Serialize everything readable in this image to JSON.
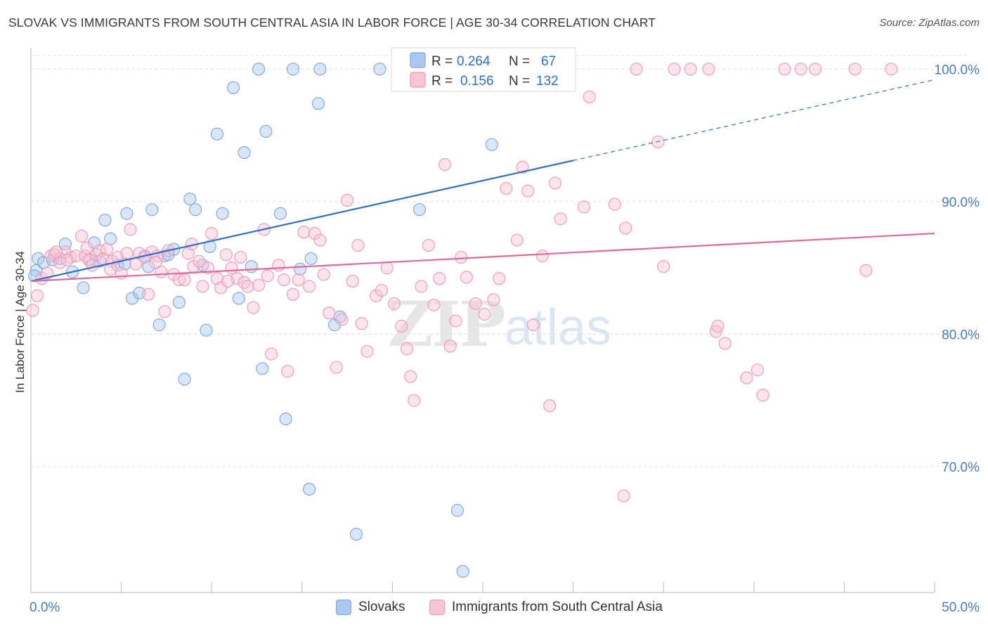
{
  "header": {
    "title": "SLOVAK VS IMMIGRANTS FROM SOUTH CENTRAL ASIA IN LABOR FORCE | AGE 30-34 CORRELATION CHART",
    "source": "Source: ZipAtlas.com"
  },
  "colors": {
    "slovaks": "#7aa6e0",
    "slovaks_fill": "#aac8f0",
    "slovaks_line": "#2f6fcf",
    "immigrants": "#ee99b5",
    "immigrants_fill": "#f7c4d5",
    "immigrants_line": "#e2699a",
    "axis_label": "#4a7cc0",
    "grid": "#e0e0e0"
  },
  "legend": {
    "r_label": "R =",
    "n_label": "N =",
    "slovaks": {
      "r": "0.264",
      "n": "67"
    },
    "immigrants": {
      "r": "0.156",
      "n": "132"
    }
  },
  "watermark": {
    "zip": "ZIP",
    "atlas": "atlas"
  },
  "bottom_legend": {
    "slovaks": "Slovaks",
    "immigrants": "Immigrants from South Central Asia"
  },
  "chart_data": {
    "type": "scatter",
    "title": "SLOVAK VS IMMIGRANTS FROM SOUTH CENTRAL ASIA IN LABOR FORCE | AGE 30-34 CORRELATION CHART",
    "xlabel": "",
    "ylabel": "In Labor Force | Age 30-34",
    "xlim": [
      0,
      50
    ],
    "ylim": [
      60.5,
      101.5
    ],
    "x_tick_labels": [
      "0.0%",
      "50.0%"
    ],
    "y_ticks": [
      70,
      80,
      90,
      100
    ],
    "y_tick_labels": [
      "70.0%",
      "80.0%",
      "90.0%",
      "100.0%"
    ],
    "grid": true,
    "legend_position": "top-center",
    "series": [
      {
        "name": "Slovaks",
        "r": 0.264,
        "n": 67,
        "trend": {
          "x": [
            0,
            30
          ],
          "y": [
            84.0,
            93.1
          ],
          "dashed_extension": {
            "x": [
              30,
              50
            ],
            "y": [
              93.1,
              99.2
            ]
          }
        },
        "points": [
          [
            0.3,
            84.8
          ],
          [
            0.4,
            85.7
          ],
          [
            0.7,
            85.4
          ],
          [
            1.2,
            85.6
          ],
          [
            1.6,
            85.7
          ],
          [
            1.9,
            86.8
          ],
          [
            2.3,
            84.7
          ],
          [
            2.9,
            83.5
          ],
          [
            3.3,
            85.6
          ],
          [
            3.5,
            86.9
          ],
          [
            3.8,
            85.5
          ],
          [
            4.1,
            88.6
          ],
          [
            4.4,
            87.2
          ],
          [
            4.8,
            85.2
          ],
          [
            5.2,
            85.3
          ],
          [
            5.3,
            89.1
          ],
          [
            5.6,
            82.7
          ],
          [
            6.0,
            83.1
          ],
          [
            6.3,
            85.9
          ],
          [
            6.5,
            85.1
          ],
          [
            6.7,
            89.4
          ],
          [
            7.1,
            80.7
          ],
          [
            7.4,
            85.9
          ],
          [
            7.6,
            86.0
          ],
          [
            7.9,
            86.4
          ],
          [
            8.2,
            82.4
          ],
          [
            8.5,
            76.6
          ],
          [
            8.8,
            90.2
          ],
          [
            9.1,
            89.4
          ],
          [
            9.5,
            85.2
          ],
          [
            9.7,
            80.3
          ],
          [
            9.9,
            86.6
          ],
          [
            10.3,
            95.1
          ],
          [
            10.6,
            89.1
          ],
          [
            11.2,
            98.6
          ],
          [
            11.5,
            82.7
          ],
          [
            11.8,
            93.7
          ],
          [
            12.2,
            85.1
          ],
          [
            12.6,
            100.0
          ],
          [
            12.8,
            77.4
          ],
          [
            13.0,
            95.3
          ],
          [
            13.8,
            89.1
          ],
          [
            14.1,
            73.6
          ],
          [
            14.5,
            100.0
          ],
          [
            14.9,
            84.9
          ],
          [
            15.4,
            68.3
          ],
          [
            15.5,
            85.7
          ],
          [
            15.9,
            97.4
          ],
          [
            16.0,
            100.0
          ],
          [
            16.8,
            80.7
          ],
          [
            17.1,
            81.3
          ],
          [
            18.0,
            64.9
          ],
          [
            19.3,
            100.0
          ],
          [
            20.5,
            100.0
          ],
          [
            21.0,
            100.0
          ],
          [
            21.5,
            89.4
          ],
          [
            23.0,
            100.0
          ],
          [
            23.6,
            66.7
          ],
          [
            23.9,
            62.1
          ],
          [
            24.5,
            100.0
          ],
          [
            25.5,
            94.3
          ],
          [
            25.8,
            100.0
          ],
          [
            26.3,
            100.0
          ],
          [
            27.0,
            100.0
          ],
          [
            27.5,
            100.0
          ],
          [
            28.2,
            100.0
          ],
          [
            0.2,
            84.4
          ]
        ]
      },
      {
        "name": "Immigrants from South Central Asia",
        "r": 0.156,
        "n": 132,
        "trend": {
          "x": [
            0,
            50
          ],
          "y": [
            84.0,
            87.6
          ]
        },
        "points": [
          [
            0.1,
            81.8
          ],
          [
            0.35,
            82.9
          ],
          [
            0.6,
            84.2
          ],
          [
            0.9,
            84.6
          ],
          [
            1.1,
            85.9
          ],
          [
            1.3,
            86.0
          ],
          [
            1.6,
            85.4
          ],
          [
            1.9,
            86.2
          ],
          [
            2.2,
            85.8
          ],
          [
            2.5,
            85.9
          ],
          [
            2.8,
            87.4
          ],
          [
            3.0,
            85.9
          ],
          [
            3.2,
            85.6
          ],
          [
            3.4,
            85.2
          ],
          [
            3.6,
            86.0
          ],
          [
            3.8,
            86.3
          ],
          [
            4.0,
            85.7
          ],
          [
            4.2,
            86.4
          ],
          [
            4.5,
            85.5
          ],
          [
            4.8,
            85.8
          ],
          [
            5.0,
            84.6
          ],
          [
            5.3,
            86.1
          ],
          [
            5.5,
            87.9
          ],
          [
            5.8,
            85.3
          ],
          [
            6.0,
            86.1
          ],
          [
            6.3,
            85.8
          ],
          [
            6.5,
            83.0
          ],
          [
            6.7,
            86.2
          ],
          [
            7.0,
            85.9
          ],
          [
            7.2,
            84.7
          ],
          [
            7.4,
            81.7
          ],
          [
            7.6,
            86.3
          ],
          [
            7.9,
            84.5
          ],
          [
            8.2,
            84.1
          ],
          [
            8.5,
            84.1
          ],
          [
            8.7,
            86.1
          ],
          [
            9.0,
            85.1
          ],
          [
            9.3,
            85.5
          ],
          [
            9.5,
            83.6
          ],
          [
            9.8,
            85.0
          ],
          [
            10.0,
            87.6
          ],
          [
            10.3,
            84.2
          ],
          [
            10.5,
            83.5
          ],
          [
            10.8,
            86.0
          ],
          [
            11.1,
            85.0
          ],
          [
            11.4,
            84.2
          ],
          [
            11.6,
            85.8
          ],
          [
            11.8,
            83.9
          ],
          [
            12.0,
            83.6
          ],
          [
            12.3,
            82.0
          ],
          [
            12.6,
            83.7
          ],
          [
            12.9,
            87.9
          ],
          [
            13.1,
            84.4
          ],
          [
            13.3,
            78.5
          ],
          [
            13.7,
            85.2
          ],
          [
            14.0,
            84.1
          ],
          [
            14.2,
            77.2
          ],
          [
            14.5,
            83.0
          ],
          [
            14.8,
            84.1
          ],
          [
            15.1,
            87.7
          ],
          [
            15.4,
            83.6
          ],
          [
            15.7,
            87.6
          ],
          [
            16.0,
            87.1
          ],
          [
            16.2,
            84.5
          ],
          [
            16.5,
            81.6
          ],
          [
            16.9,
            77.5
          ],
          [
            17.2,
            81.1
          ],
          [
            17.5,
            90.1
          ],
          [
            17.8,
            84.0
          ],
          [
            18.1,
            86.7
          ],
          [
            18.3,
            80.8
          ],
          [
            18.6,
            78.7
          ],
          [
            19.1,
            82.9
          ],
          [
            19.4,
            83.3
          ],
          [
            19.7,
            85.0
          ],
          [
            20.1,
            82.3
          ],
          [
            20.5,
            80.6
          ],
          [
            20.8,
            78.9
          ],
          [
            21.0,
            76.8
          ],
          [
            21.2,
            75.0
          ],
          [
            21.6,
            83.6
          ],
          [
            22.0,
            86.7
          ],
          [
            22.3,
            82.2
          ],
          [
            22.6,
            84.2
          ],
          [
            22.9,
            92.8
          ],
          [
            23.2,
            79.1
          ],
          [
            23.5,
            81.0
          ],
          [
            23.8,
            85.8
          ],
          [
            24.1,
            84.3
          ],
          [
            24.6,
            82.3
          ],
          [
            25.1,
            81.5
          ],
          [
            25.6,
            82.6
          ],
          [
            25.9,
            84.2
          ],
          [
            26.3,
            91.0
          ],
          [
            26.9,
            87.1
          ],
          [
            27.2,
            92.6
          ],
          [
            27.5,
            90.8
          ],
          [
            27.8,
            80.7
          ],
          [
            28.3,
            85.9
          ],
          [
            28.7,
            74.6
          ],
          [
            29.0,
            91.4
          ],
          [
            29.3,
            88.7
          ],
          [
            30.6,
            89.6
          ],
          [
            30.9,
            97.9
          ],
          [
            32.3,
            89.8
          ],
          [
            32.8,
            67.8
          ],
          [
            32.9,
            88.0
          ],
          [
            33.5,
            100.0
          ],
          [
            34.7,
            94.5
          ],
          [
            35.0,
            85.1
          ],
          [
            35.6,
            100.0
          ],
          [
            36.5,
            100.0
          ],
          [
            37.5,
            100.0
          ],
          [
            37.9,
            80.2
          ],
          [
            38.0,
            80.6
          ],
          [
            38.4,
            79.3
          ],
          [
            39.6,
            76.7
          ],
          [
            40.2,
            77.3
          ],
          [
            40.5,
            75.4
          ],
          [
            41.7,
            100.0
          ],
          [
            42.6,
            100.0
          ],
          [
            43.4,
            100.0
          ],
          [
            45.6,
            100.0
          ],
          [
            46.2,
            84.8
          ],
          [
            47.6,
            100.0
          ],
          [
            1.4,
            86.2
          ],
          [
            2.0,
            85.6
          ],
          [
            3.1,
            86.5
          ],
          [
            4.4,
            84.9
          ],
          [
            6.9,
            85.4
          ],
          [
            8.9,
            86.8
          ],
          [
            10.9,
            84.0
          ]
        ]
      }
    ]
  }
}
